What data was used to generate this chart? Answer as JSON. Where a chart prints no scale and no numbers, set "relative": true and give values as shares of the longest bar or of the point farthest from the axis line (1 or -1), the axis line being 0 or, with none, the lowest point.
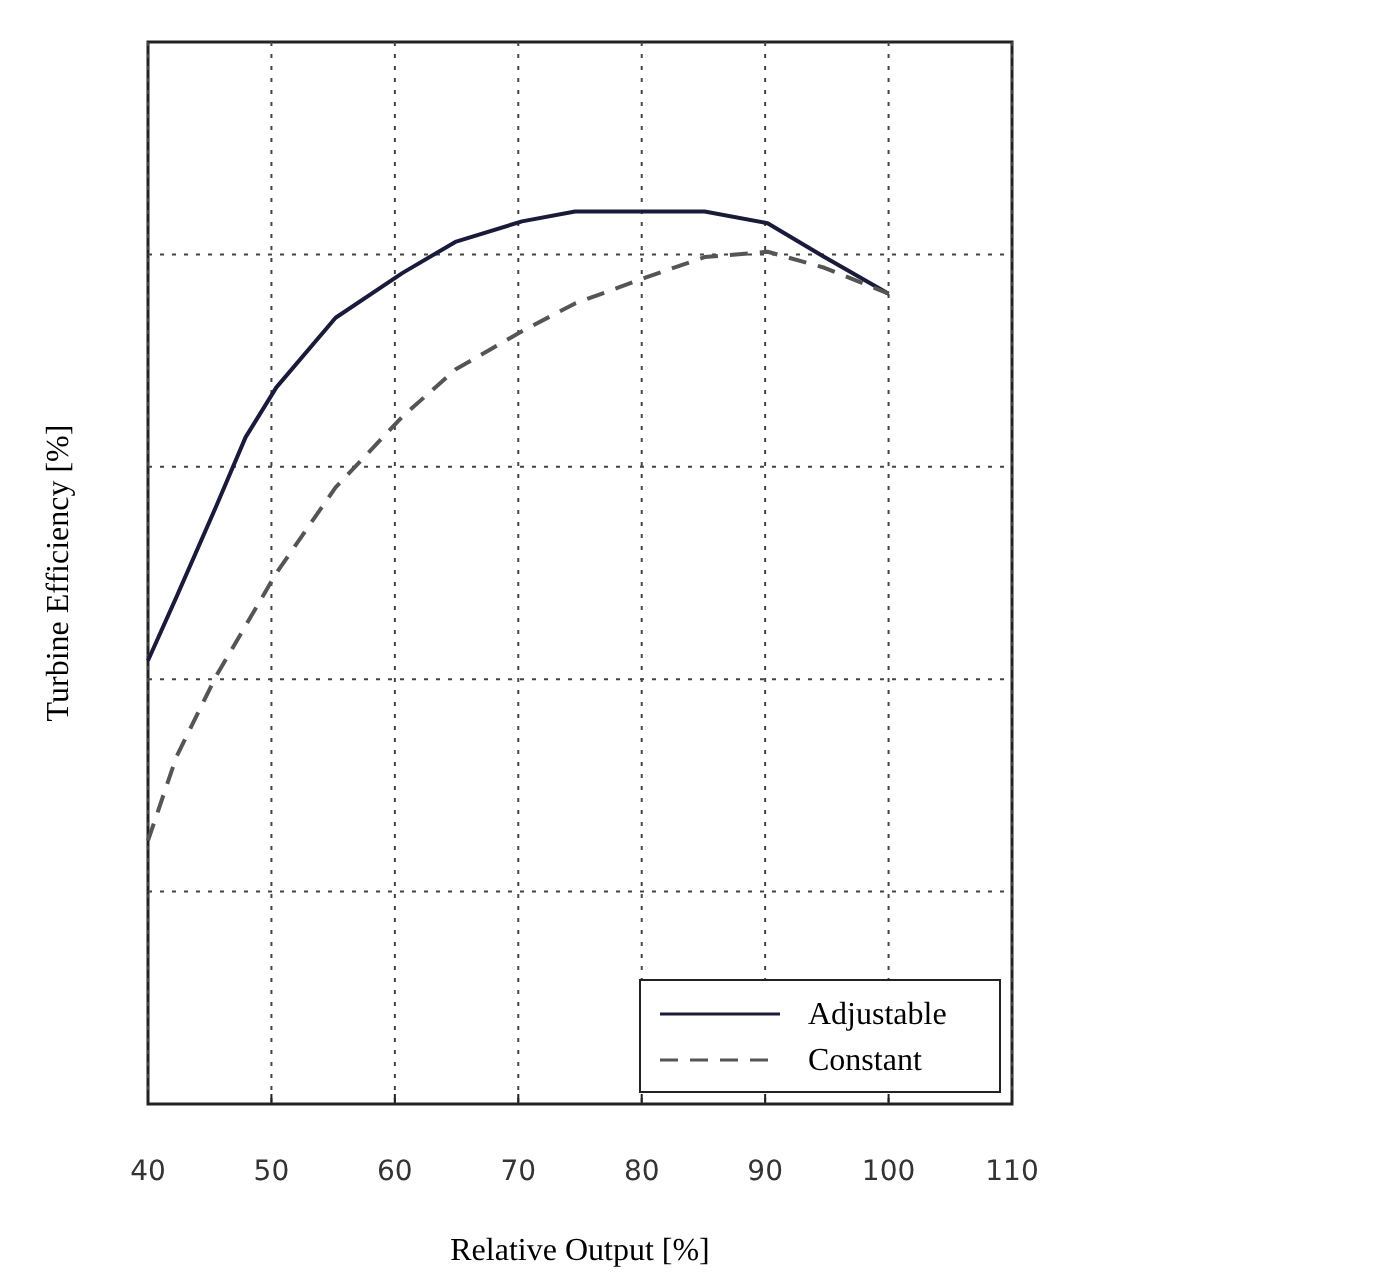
{
  "chart_data": {
    "type": "line",
    "xlabel": "Relative Output [%]",
    "ylabel": "Turbine Efficiency [%]",
    "relative": true,
    "xlim": [
      40,
      110
    ],
    "xticks": [
      40,
      50,
      60,
      70,
      80,
      90,
      100,
      110
    ],
    "grid": true,
    "legend": "bottom right",
    "series": [
      {
        "name": "Adjustable",
        "color": "#1a1a3a",
        "line_style": "solid",
        "x": [
          40,
          42.3,
          45.5,
          47.9,
          50.4,
          55.2,
          60.6,
          64.9,
          70.3,
          74.6,
          80.3,
          85.1,
          90.2,
          94.8,
          100
        ],
        "values": [
          0.497,
          0.568,
          0.669,
          0.747,
          0.803,
          0.881,
          0.931,
          0.966,
          0.989,
          1,
          1,
          1,
          0.987,
          0.949,
          0.908
        ]
      },
      {
        "name": "Constant",
        "color": "#555555",
        "line_style": "dashed",
        "x": [
          40,
          42.3,
          45.5,
          50.4,
          55.2,
          60.6,
          64.9,
          70.3,
          74.6,
          80.3,
          85.1,
          90.2,
          94.8,
          100
        ],
        "values": [
          0.295,
          0.389,
          0.479,
          0.595,
          0.691,
          0.77,
          0.823,
          0.866,
          0.897,
          0.926,
          0.949,
          0.955,
          0.937,
          0.908
        ]
      }
    ]
  }
}
